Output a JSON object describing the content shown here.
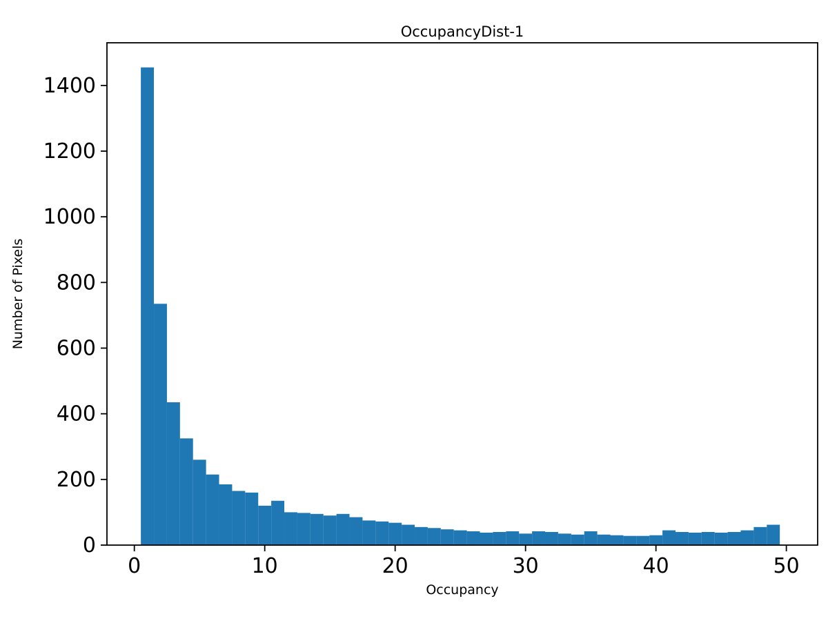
{
  "chart_data": {
    "type": "bar",
    "subtype": "histogram",
    "title": "OccupancyDist-1",
    "xlabel": "Occupancy",
    "ylabel": "Number of Pixels",
    "bin_start": 0.5,
    "bin_width": 1.0,
    "values": [
      1455,
      735,
      435,
      325,
      260,
      215,
      185,
      165,
      160,
      120,
      135,
      100,
      98,
      95,
      90,
      95,
      85,
      75,
      72,
      68,
      62,
      55,
      52,
      48,
      45,
      42,
      38,
      40,
      42,
      35,
      42,
      40,
      35,
      32,
      42,
      32,
      30,
      28,
      28,
      30,
      45,
      40,
      38,
      40,
      38,
      40,
      45,
      55,
      62
    ],
    "xlim": [
      -2.1,
      52.4
    ],
    "ylim": [
      0,
      1530
    ],
    "xticks": [
      0,
      10,
      20,
      30,
      40,
      50
    ],
    "yticks": [
      0,
      200,
      400,
      600,
      800,
      1000,
      1200,
      1400
    ],
    "grid": false,
    "legend": "none",
    "bar_color": "#1f77b4",
    "axis_color": "#000000",
    "background_color": "#ffffff"
  }
}
